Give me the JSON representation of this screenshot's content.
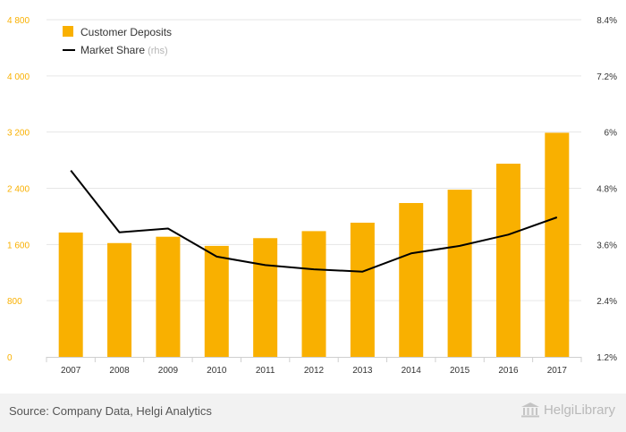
{
  "chart_data": {
    "type": "bar+line",
    "categories": [
      "2007",
      "2008",
      "2009",
      "2010",
      "2011",
      "2012",
      "2013",
      "2014",
      "2015",
      "2016",
      "2017"
    ],
    "series": [
      {
        "name": "Customer Deposits",
        "type": "bar",
        "axis": "left",
        "color": "#f9b000",
        "values": [
          1770,
          1620,
          1710,
          1580,
          1690,
          1790,
          1910,
          2190,
          2380,
          2750,
          3190
        ]
      },
      {
        "name": "Market Share",
        "suffix": " (rhs)",
        "type": "line",
        "axis": "right",
        "color": "#000000",
        "values": [
          5.18,
          3.86,
          3.94,
          3.34,
          3.16,
          3.07,
          3.02,
          3.41,
          3.57,
          3.81,
          4.18
        ]
      }
    ],
    "y_left": {
      "min": 0,
      "max": 4800,
      "ticks": [
        0,
        800,
        1600,
        2400,
        3200,
        4000,
        4800
      ],
      "tick_labels": [
        "0",
        "800",
        "1 600",
        "2 400",
        "3 200",
        "4 000",
        "4 800"
      ],
      "color": "#f9b000"
    },
    "y_right": {
      "min": 1.2,
      "max": 8.4,
      "ticks": [
        1.2,
        2.4,
        3.6,
        4.8,
        6.0,
        7.2,
        8.4
      ],
      "tick_labels": [
        "1.2%",
        "2.4%",
        "3.6%",
        "4.8%",
        "6%",
        "7.2%",
        "8.4%"
      ]
    },
    "legend_placement": "top-left",
    "grid": true
  },
  "footer": {
    "source": "Source: Company Data, Helgi Analytics",
    "brand": "HelgiLibrary",
    "brand_icon": "library-columns-icon"
  }
}
